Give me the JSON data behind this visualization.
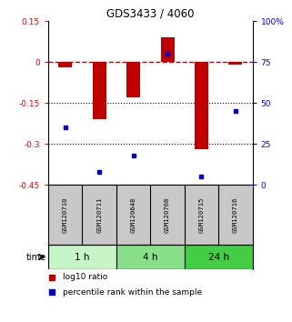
{
  "title": "GDS3433 / 4060",
  "samples": [
    "GSM120710",
    "GSM120711",
    "GSM120648",
    "GSM120708",
    "GSM120715",
    "GSM120716"
  ],
  "log10_ratio": [
    -0.02,
    -0.21,
    -0.13,
    0.09,
    -0.32,
    -0.01
  ],
  "percentile_rank": [
    35,
    8,
    18,
    80,
    5,
    45
  ],
  "groups": [
    {
      "label": "1 h",
      "indices": [
        0,
        1
      ],
      "color": "#c8f5c8"
    },
    {
      "label": "4 h",
      "indices": [
        2,
        3
      ],
      "color": "#88e088"
    },
    {
      "label": "24 h",
      "indices": [
        4,
        5
      ],
      "color": "#44cc44"
    }
  ],
  "bar_color": "#c00000",
  "dot_color": "#0000cc",
  "ylim_left": [
    -0.45,
    0.15
  ],
  "ylim_right": [
    0,
    100
  ],
  "yticks_left": [
    0.15,
    0,
    -0.15,
    -0.3,
    -0.45
  ],
  "yticks_left_labels": [
    "0.15",
    "0",
    "-0.15",
    "-0.3",
    "-0.45"
  ],
  "yticks_right": [
    100,
    75,
    50,
    25,
    0
  ],
  "yticks_right_labels": [
    "100%",
    "75",
    "50",
    "25",
    "0"
  ],
  "dotted_lines": [
    -0.15,
    -0.3
  ],
  "background_color": "#ffffff",
  "bar_width": 0.4,
  "label_bg": "#c8c8c8"
}
